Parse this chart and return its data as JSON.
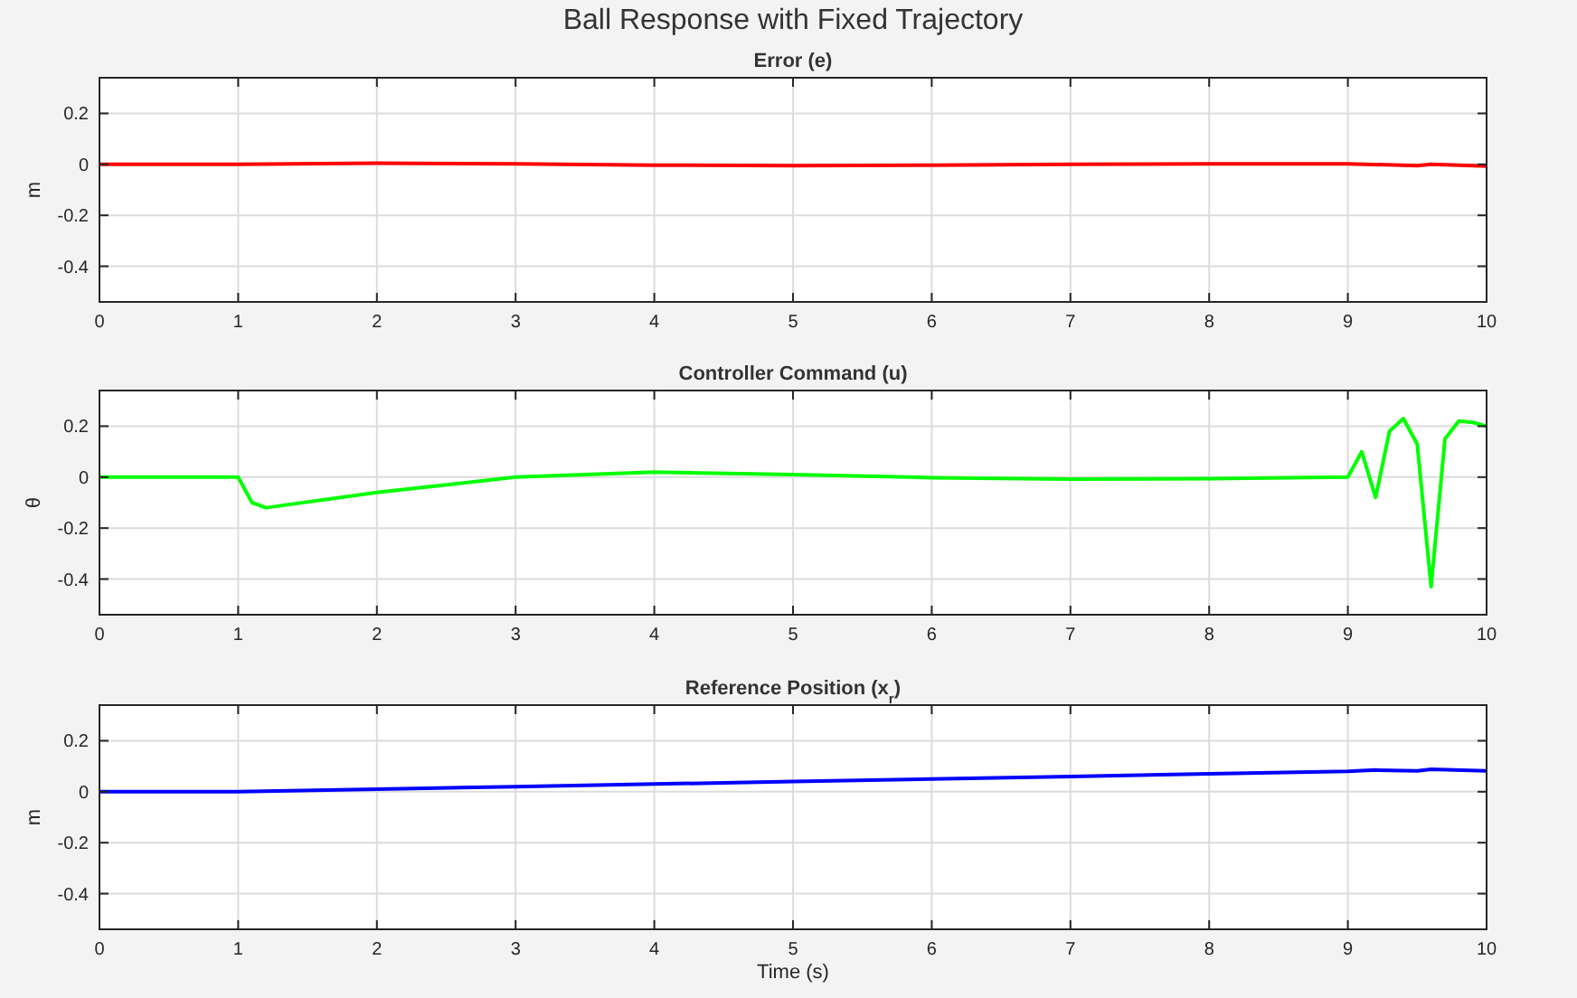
{
  "chart_data": [
    {
      "type": "line",
      "title": "Ball Response with Fixed Trajectory",
      "subtitle": "Error (e)",
      "ylabel": "m",
      "x": [
        0,
        1,
        2,
        3,
        4,
        5,
        6,
        7,
        8,
        9,
        9.5,
        9.6,
        10
      ],
      "series": [
        {
          "color": "#ff0000",
          "values": [
            0,
            0,
            0.005,
            0.002,
            -0.003,
            -0.005,
            -0.003,
            0,
            0.002,
            0.002,
            -0.005,
            0,
            -0.007
          ]
        }
      ],
      "xlim": [
        0,
        10
      ],
      "xticks": [
        0,
        1,
        2,
        3,
        4,
        5,
        6,
        7,
        8,
        9,
        10
      ],
      "ylim": [
        -0.54,
        0.34
      ],
      "yticks": [
        -0.4,
        -0.2,
        0,
        0.2
      ],
      "grid": true,
      "line_style": "solid"
    },
    {
      "type": "line",
      "subtitle": "Controller Command (u)",
      "ylabel": "θ",
      "x": [
        0,
        1,
        1.1,
        1.2,
        2,
        3,
        4,
        5,
        6,
        7,
        8,
        9,
        9.1,
        9.2,
        9.3,
        9.4,
        9.5,
        9.6,
        9.7,
        9.8,
        9.9,
        10
      ],
      "series": [
        {
          "color": "#00ff00",
          "values": [
            0,
            0,
            -0.1,
            -0.12,
            -0.06,
            0,
            0.02,
            0.01,
            -0.002,
            -0.008,
            -0.006,
            0,
            0.1,
            -0.08,
            0.18,
            0.23,
            0.13,
            -0.43,
            0.15,
            0.22,
            0.215,
            0.2
          ]
        }
      ],
      "xlim": [
        0,
        10
      ],
      "xticks": [
        0,
        1,
        2,
        3,
        4,
        5,
        6,
        7,
        8,
        9,
        10
      ],
      "ylim": [
        -0.54,
        0.34
      ],
      "yticks": [
        -0.4,
        -0.2,
        0,
        0.2
      ],
      "grid": true,
      "line_style": "solid"
    },
    {
      "type": "line",
      "subtitle": "Reference Position (x$_{r}$)",
      "xlabel": "Time (s)",
      "ylabel": "m",
      "x": [
        0,
        1,
        2,
        3,
        4,
        5,
        6,
        7,
        8,
        9,
        9.2,
        9.5,
        9.6,
        10
      ],
      "series": [
        {
          "color": "#0000ff",
          "values": [
            0,
            0,
            0.01,
            0.02,
            0.03,
            0.04,
            0.05,
            0.06,
            0.07,
            0.08,
            0.085,
            0.082,
            0.088,
            0.082
          ]
        }
      ],
      "xlim": [
        0,
        10
      ],
      "xticks": [
        0,
        1,
        2,
        3,
        4,
        5,
        6,
        7,
        8,
        9,
        10
      ],
      "ylim": [
        -0.54,
        0.34
      ],
      "yticks": [
        -0.4,
        -0.2,
        0,
        0.2
      ],
      "grid": true,
      "line_style": "solid"
    }
  ]
}
